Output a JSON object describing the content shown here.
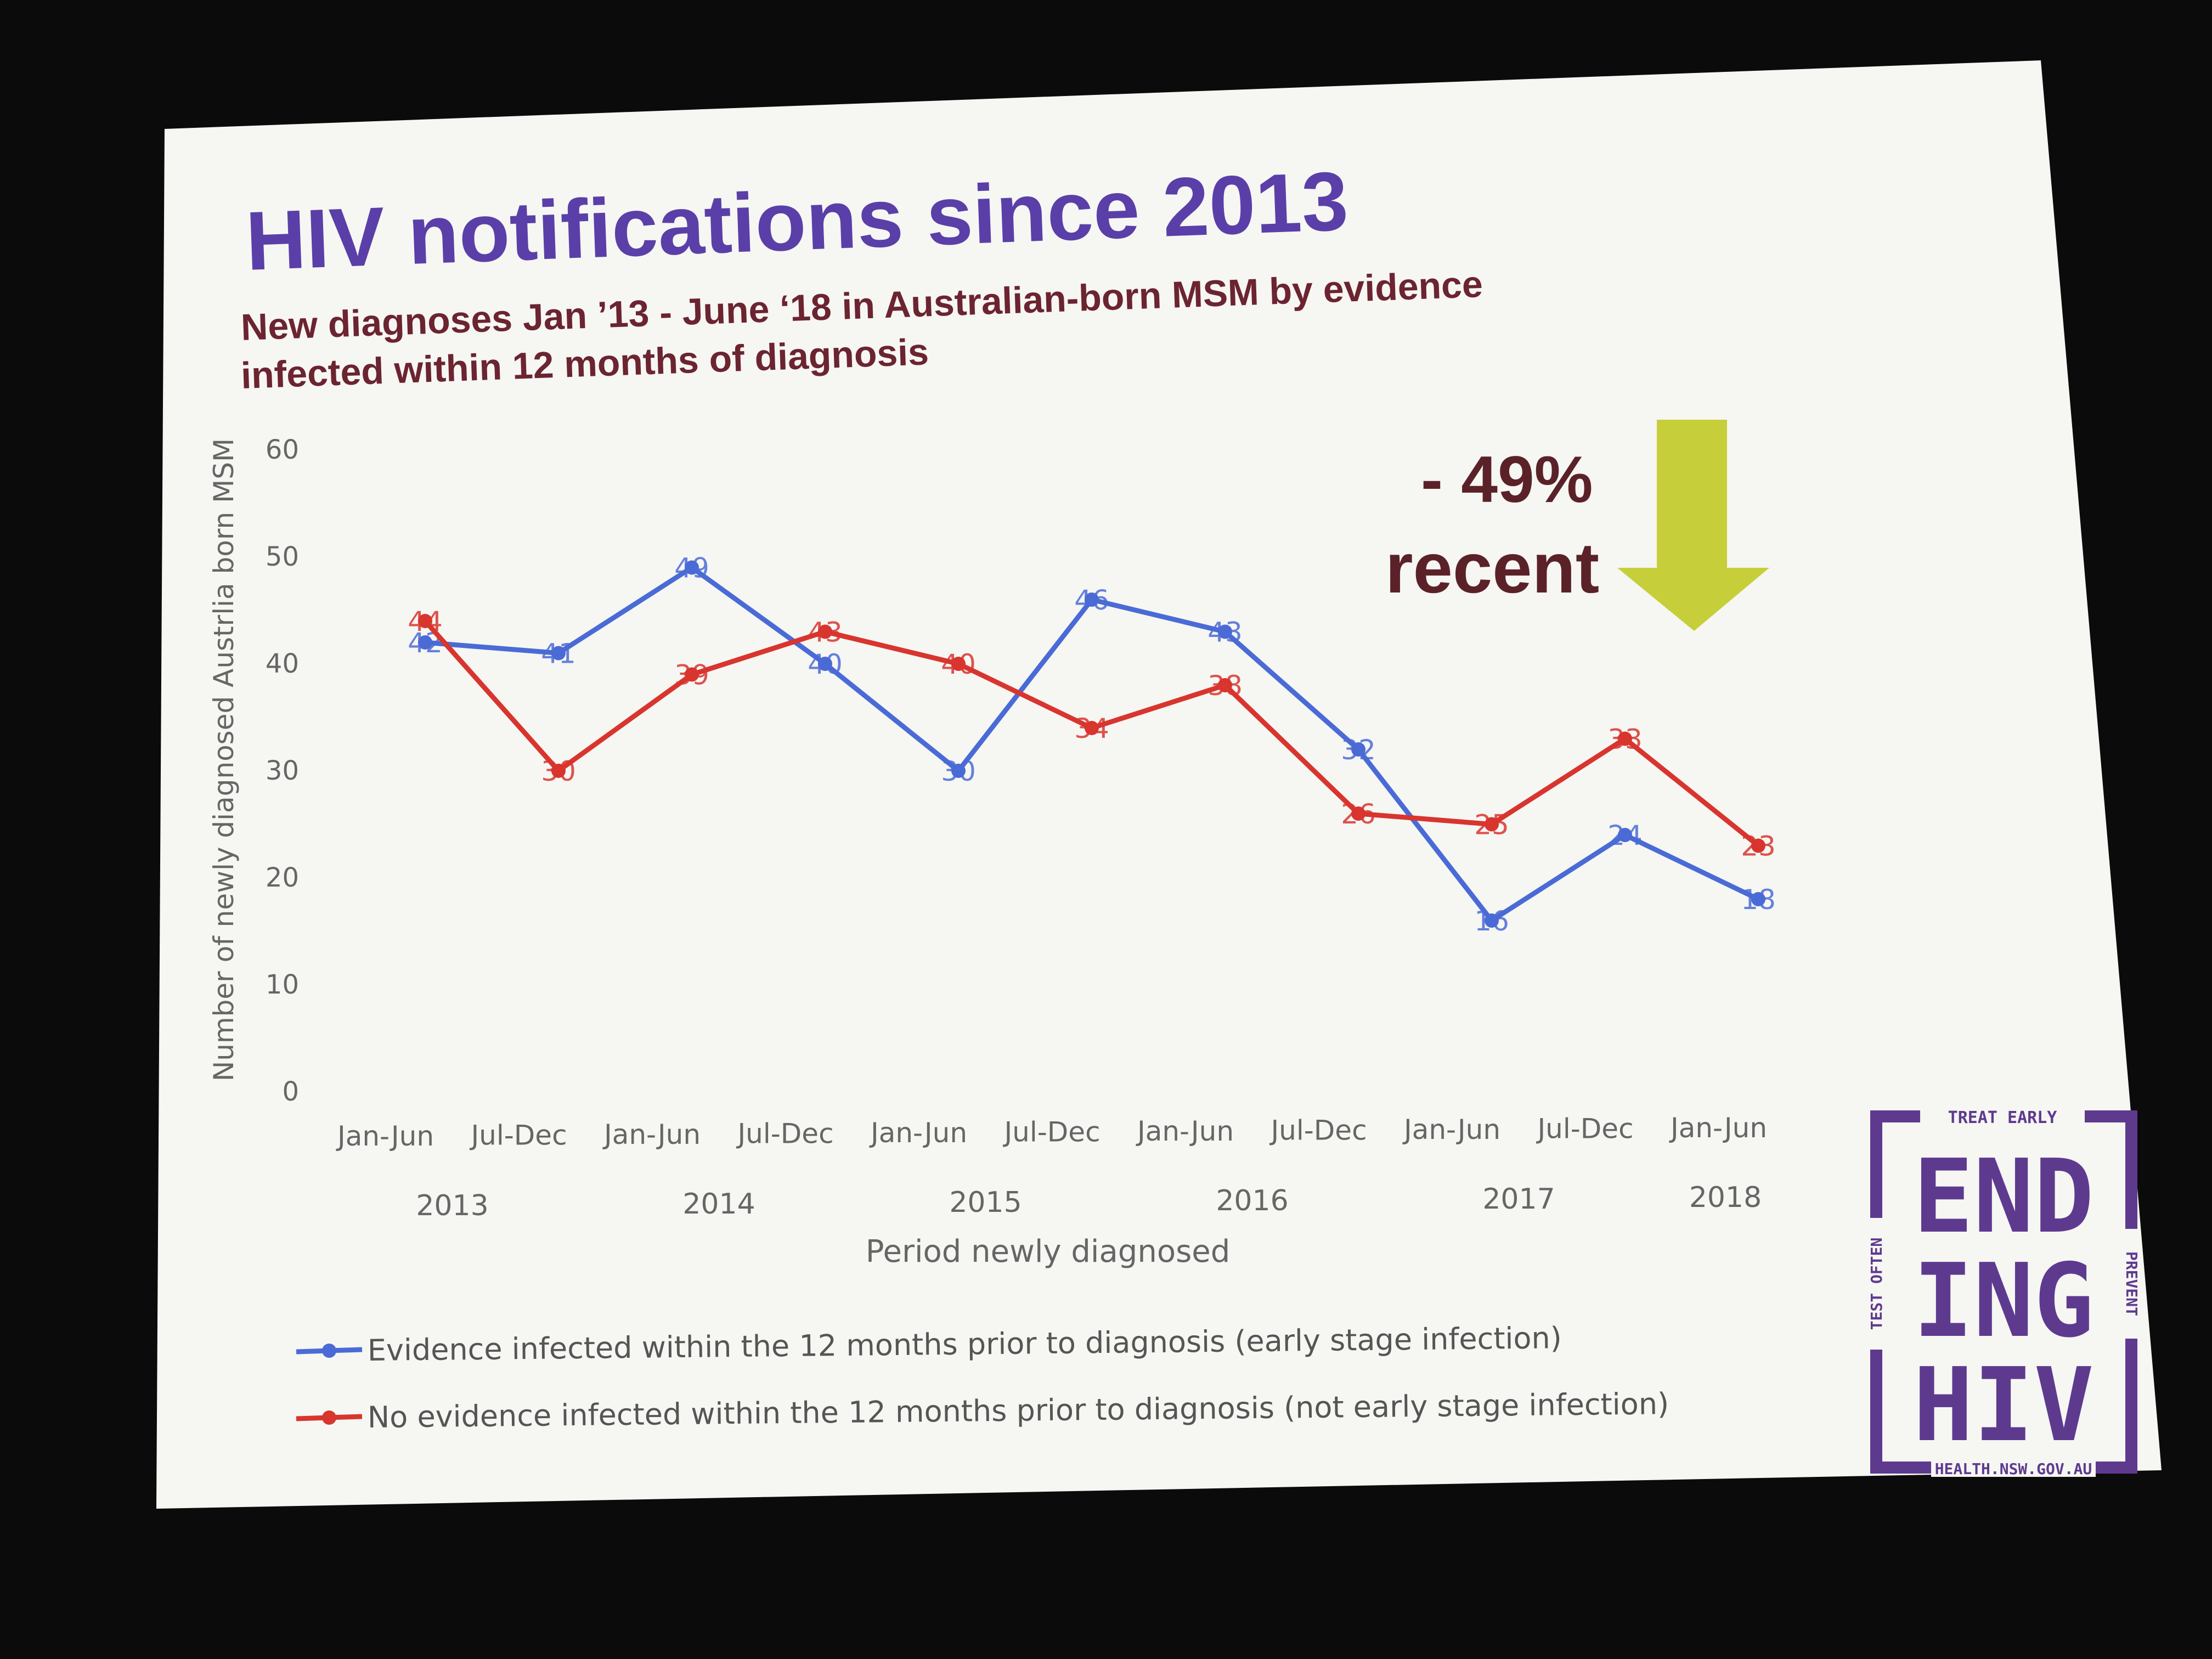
{
  "slide": {
    "title": "HIV notifications since 2013",
    "subtitle_line1": "New diagnoses Jan ’13 - June ‘18 in Australian-born MSM by evidence",
    "subtitle_line2": "infected within 12 months of diagnosis",
    "annotation_line1": "- 49%",
    "annotation_line2": "recent",
    "colors": {
      "title": "#5a3fa8",
      "subtitle": "#6b2430",
      "annotation": "#5a2228",
      "arrow": "#c6cf3a",
      "early": "#4a6bd6",
      "not_early": "#d8352e",
      "axis_text": "#666666",
      "logo": "#5e3a8f"
    }
  },
  "logo": {
    "top": "TREAT EARLY",
    "left": "TEST OFTEN",
    "right": "PREVENT",
    "bottom": "HEALTH.NSW.GOV.AU",
    "row1": "END",
    "row2": "ING",
    "row3": "HIV"
  },
  "chart_data": {
    "type": "line",
    "categories": [
      "Jan-Jun",
      "Jul-Dec",
      "Jan-Jun",
      "Jul-Dec",
      "Jan-Jun",
      "Jul-Dec",
      "Jan-Jun",
      "Jul-Dec",
      "Jan-Jun",
      "Jul-Dec",
      "Jan-Jun"
    ],
    "years": [
      "2013",
      "2014",
      "2015",
      "2016",
      "2017",
      "2018"
    ],
    "xlabel": "Period newly diagnosed",
    "ylabel": "Number of newly diagnosed Austrlia born MSM",
    "ylim": [
      0,
      60
    ],
    "yticks": [
      0,
      10,
      20,
      30,
      40,
      50,
      60
    ],
    "grid": false,
    "legend_position": "bottom",
    "series": [
      {
        "name": "Evidence infected within the 12 months prior to diagnosis (early stage infection)",
        "color": "#4a6bd6",
        "values": [
          42,
          41,
          49,
          40,
          30,
          46,
          43,
          32,
          16,
          24,
          18
        ]
      },
      {
        "name": "No evidence infected within the 12 months prior to diagnosis (not early stage infection)",
        "color": "#d8352e",
        "values": [
          44,
          30,
          39,
          43,
          40,
          34,
          38,
          26,
          25,
          33,
          23
        ]
      }
    ]
  }
}
